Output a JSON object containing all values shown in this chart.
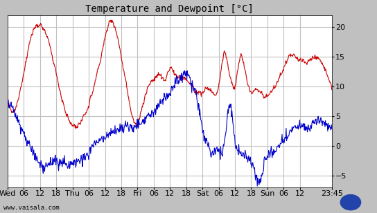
{
  "title": "Temperature and Dewpoint [°C]",
  "outer_bg": "#c0c0c0",
  "plot_bg_color": "#ffffff",
  "grid_color": "#c0c0c0",
  "temp_color": "#cc0000",
  "dewpoint_color": "#0000cc",
  "ylim": [
    -7,
    22
  ],
  "yticks": [
    -5,
    0,
    5,
    10,
    15,
    20
  ],
  "xtick_labels": [
    "Wed",
    "06",
    "12",
    "18",
    "Thu",
    "06",
    "12",
    "18",
    "Fri",
    "06",
    "12",
    "18",
    "Sat",
    "06",
    "12",
    "18",
    "Sun",
    "06",
    "12",
    "23:45"
  ],
  "xtick_positions": [
    0,
    6,
    12,
    18,
    24,
    30,
    36,
    42,
    48,
    54,
    60,
    66,
    72,
    78,
    84,
    90,
    96,
    102,
    108,
    119.75
  ],
  "watermark": "www.vaisala.com",
  "title_fontsize": 10,
  "tick_fontsize": 8,
  "line_width": 0.8,
  "xlim": [
    0,
    119.75
  ]
}
